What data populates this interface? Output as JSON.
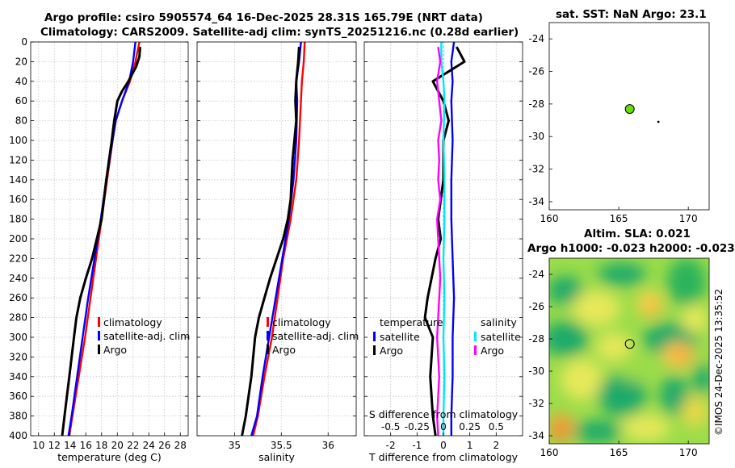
{
  "title_line1": "Argo profile: csiro 5905574_64 16-Dec-2025 28.31S 165.79E (NRT data)",
  "title_line2": "Climatology: CARS2009. Satellite-adj clim: synTS_20251216.nc (0.28d earlier)",
  "credit": "©IMOS 24-Dec-2025 13:35:52",
  "colors": {
    "climatology": "#ff0000",
    "satellite": "#0000ff",
    "argo": "#000000",
    "sat_salinity": "#00e5ff",
    "argo_salinity": "#ff00ff",
    "float_marker": "#66dd00"
  },
  "chart_data": [
    {
      "type": "line",
      "xlabel": "temperature (deg C)",
      "ylabel": "",
      "xlim": [
        9,
        29
      ],
      "ylim": [
        400,
        0
      ],
      "xticks": [
        10,
        12,
        14,
        16,
        18,
        20,
        22,
        24,
        26,
        28
      ],
      "yticks": [
        0,
        20,
        40,
        60,
        80,
        100,
        120,
        140,
        160,
        180,
        200,
        220,
        240,
        260,
        280,
        300,
        320,
        340,
        360,
        380,
        400
      ],
      "legend": [
        "climatology",
        "satellite-adj. clim",
        "Argo"
      ],
      "series": [
        {
          "name": "climatology",
          "color": "#ff0000",
          "depth": [
            0,
            20,
            40,
            60,
            80,
            100,
            140,
            180,
            220,
            260,
            300,
            340,
            380,
            400
          ],
          "values": [
            22.8,
            22.3,
            21.6,
            20.6,
            19.8,
            19.4,
            18.7,
            18.0,
            17.3,
            16.6,
            15.9,
            15.1,
            14.3,
            13.9
          ]
        },
        {
          "name": "satellite-adj. clim",
          "color": "#0000ff",
          "depth": [
            0,
            20,
            40,
            60,
            80,
            100,
            140,
            180,
            220,
            260,
            300,
            340,
            380,
            400
          ],
          "values": [
            22.3,
            22.0,
            21.5,
            20.6,
            19.8,
            19.4,
            18.6,
            17.9,
            17.1,
            16.3,
            15.6,
            14.9,
            14.2,
            13.8
          ]
        },
        {
          "name": "Argo",
          "color": "#000000",
          "depth": [
            5,
            15,
            25,
            40,
            50,
            60,
            80,
            100,
            140,
            180,
            220,
            240,
            260,
            280,
            300,
            320,
            340,
            360,
            380,
            400
          ],
          "values": [
            22.9,
            22.8,
            22.4,
            21.4,
            20.6,
            20.0,
            19.6,
            19.3,
            18.6,
            18.0,
            16.8,
            16.0,
            15.3,
            14.8,
            14.5,
            14.2,
            13.9,
            13.6,
            13.3,
            13.0
          ]
        }
      ]
    },
    {
      "type": "line",
      "xlabel": "salinity",
      "ylabel": "",
      "xlim": [
        34.6,
        36.3
      ],
      "ylim": [
        400,
        0
      ],
      "xticks": [
        35,
        35.5,
        36
      ],
      "legend": [
        "climatology",
        "satellite-adj. clim",
        "Argo"
      ],
      "series": [
        {
          "name": "climatology",
          "color": "#ff0000",
          "depth": [
            0,
            20,
            40,
            60,
            100,
            140,
            180,
            220,
            260,
            300,
            340,
            380,
            400
          ],
          "values": [
            35.75,
            35.74,
            35.72,
            35.71,
            35.69,
            35.66,
            35.6,
            35.52,
            35.46,
            35.4,
            35.32,
            35.25,
            35.2
          ]
        },
        {
          "name": "satellite-adj. clim",
          "color": "#0000ff",
          "depth": [
            0,
            20,
            40,
            60,
            100,
            140,
            180,
            220,
            260,
            300,
            340,
            380,
            400
          ],
          "values": [
            35.71,
            35.69,
            35.66,
            35.67,
            35.66,
            35.63,
            35.58,
            35.51,
            35.44,
            35.37,
            35.3,
            35.24,
            35.18
          ]
        },
        {
          "name": "Argo",
          "color": "#000000",
          "depth": [
            5,
            20,
            40,
            60,
            80,
            100,
            120,
            140,
            160,
            180,
            200,
            220,
            240,
            260,
            280,
            300,
            320,
            340,
            360,
            380,
            400
          ],
          "values": [
            35.69,
            35.68,
            35.66,
            35.65,
            35.66,
            35.64,
            35.62,
            35.61,
            35.6,
            35.57,
            35.52,
            35.45,
            35.38,
            35.32,
            35.26,
            35.22,
            35.2,
            35.18,
            35.15,
            35.12,
            35.08
          ]
        }
      ]
    },
    {
      "type": "line",
      "xlabel": "T difference from climatology",
      "xlabel_top": "S difference from climatology",
      "xlim": [
        -3,
        3
      ],
      "ylim": [
        400,
        0
      ],
      "xticks": [
        -2,
        -1,
        0,
        1,
        2
      ],
      "xticks_top": [
        -0.5,
        -0.25,
        0,
        0.25,
        0.5
      ],
      "xtick_labels_top": [
        "-0.5",
        "-0.25",
        "0",
        "0.25",
        "0.5"
      ],
      "legend_temperature_title": "temperature",
      "legend_salinity_title": "salinity",
      "legend_temperature": [
        "satellite",
        "Argo"
      ],
      "legend_salinity": [
        "satellite",
        "Argo"
      ],
      "series": [
        {
          "name": "temperature satellite",
          "color": "#0000ff",
          "depth": [
            0,
            20,
            40,
            60,
            100,
            140,
            180,
            220,
            260,
            300,
            340,
            380,
            400
          ],
          "values": [
            0.4,
            0.3,
            0.35,
            0.3,
            0.35,
            0.3,
            0.3,
            0.35,
            0.4,
            0.35,
            0.35,
            0.3,
            0.3
          ]
        },
        {
          "name": "temperature Argo",
          "color": "#000000",
          "depth": [
            5,
            20,
            40,
            60,
            80,
            100,
            140,
            180,
            200,
            220,
            260,
            280,
            300,
            340,
            380,
            400
          ],
          "values": [
            0.5,
            0.8,
            -0.4,
            0.0,
            0.2,
            0.0,
            0.0,
            -0.2,
            -0.1,
            -0.3,
            -0.6,
            -0.7,
            -0.4,
            -0.5,
            -0.4,
            -0.3
          ]
        },
        {
          "name": "salinity satellite",
          "color": "#00e5ff",
          "depth": [
            0,
            20,
            40,
            60,
            100,
            140,
            180,
            220,
            260,
            300,
            340,
            380,
            400
          ],
          "values": [
            -0.02,
            -0.02,
            0.0,
            0.01,
            0.0,
            0.01,
            0.01,
            0.0,
            0.01,
            0.0,
            0.01,
            0.0,
            0.0
          ]
        },
        {
          "name": "salinity Argo",
          "color": "#ff00ff",
          "depth": [
            5,
            20,
            40,
            60,
            80,
            100,
            120,
            140,
            160,
            180,
            200,
            220,
            240,
            260,
            280,
            300,
            320,
            340,
            360,
            380,
            400
          ],
          "values": [
            -0.05,
            -0.03,
            -0.06,
            -0.04,
            -0.02,
            -0.05,
            -0.04,
            -0.05,
            -0.03,
            -0.06,
            -0.05,
            -0.04,
            -0.03,
            -0.04,
            -0.05,
            -0.06,
            -0.05,
            -0.04,
            -0.05,
            -0.06,
            -0.05
          ]
        }
      ]
    },
    {
      "type": "heatmap",
      "title": "sat. SST: NaN Argo: 23.1",
      "xlim": [
        160,
        171.5
      ],
      "ylim": [
        -34.5,
        -23
      ],
      "xticks": [
        160,
        165,
        170
      ],
      "yticks": [
        -24,
        -26,
        -28,
        -30,
        -32,
        -34
      ],
      "float_lon": 165.79,
      "float_lat": -28.31
    },
    {
      "type": "heatmap",
      "title_line1": "Altim. SLA: 0.021",
      "title_line2": "Argo h1000: -0.023 h2000: -0.023",
      "xlim": [
        160,
        171.5
      ],
      "ylim": [
        -34.5,
        -23
      ],
      "xticks": [
        160,
        165,
        170
      ],
      "yticks": [
        -24,
        -26,
        -28,
        -30,
        -32,
        -34
      ],
      "float_lon": 165.79,
      "float_lat": -28.31
    }
  ]
}
